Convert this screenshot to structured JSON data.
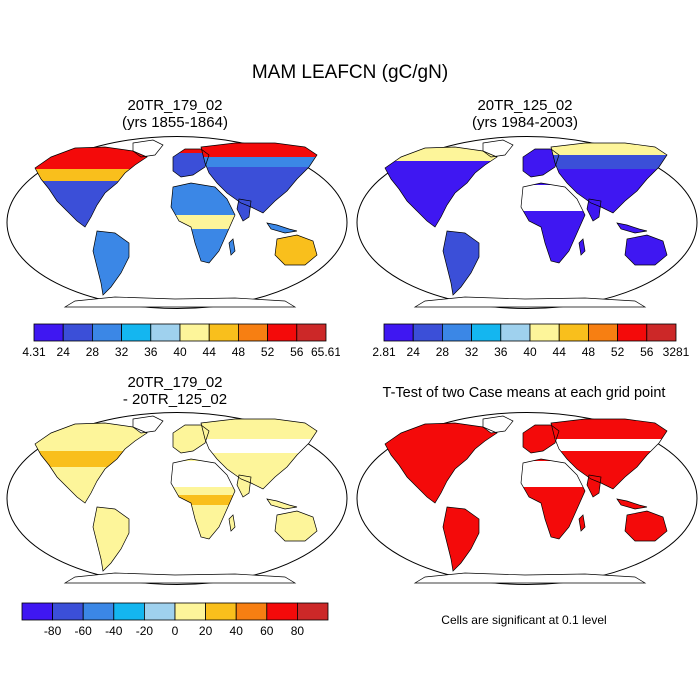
{
  "title": "MAM LEAFCN (gC/gN)",
  "panels": [
    {
      "title": "20TR_179_02",
      "subtitle": "(yrs 1855-1864)"
    },
    {
      "title": "20TR_125_02",
      "subtitle": "(yrs 1984-2003)"
    },
    {
      "title": "20TR_179_02",
      "subtitle": "- 20TR_125_02"
    },
    {
      "title": "T-Test of two Case means at each grid point",
      "subtitle": ""
    }
  ],
  "significance_note": "Cells are significant at 0.1 level",
  "colors": {
    "scale": [
      "#3f17f2",
      "#3b4fd8",
      "#3b87e6",
      "#14b6f0",
      "#9fd1ee",
      "#fdf59a",
      "#f9bf1c",
      "#f77f12",
      "#f40a0a",
      "#cc2828"
    ],
    "land_outline": "#000000",
    "significance": "#f40a0a"
  },
  "chart_data": [
    {
      "type": "heatmap",
      "title": "20TR_179_02",
      "subtitle": "(yrs 1855-1864)",
      "colorbar_labels": [
        "4.31",
        "24",
        "28",
        "32",
        "36",
        "40",
        "44",
        "48",
        "52",
        "56",
        "65.61"
      ],
      "colorbar_bins": 10
    },
    {
      "type": "heatmap",
      "title": "20TR_125_02",
      "subtitle": "(yrs 1984-2003)",
      "colorbar_labels": [
        "2.81",
        "24",
        "28",
        "32",
        "36",
        "40",
        "44",
        "48",
        "52",
        "56",
        "3281"
      ],
      "colorbar_bins": 10
    },
    {
      "type": "heatmap",
      "title": "20TR_179_02",
      "subtitle": "- 20TR_125_02",
      "colorbar_labels": [
        "-80",
        "-60",
        "-40",
        "-20",
        "0",
        "20",
        "40",
        "60",
        "80"
      ],
      "colorbar_bins": 10
    },
    {
      "type": "heatmap",
      "title": "T-Test of two Case means at each grid point",
      "colorbar_labels": []
    }
  ]
}
